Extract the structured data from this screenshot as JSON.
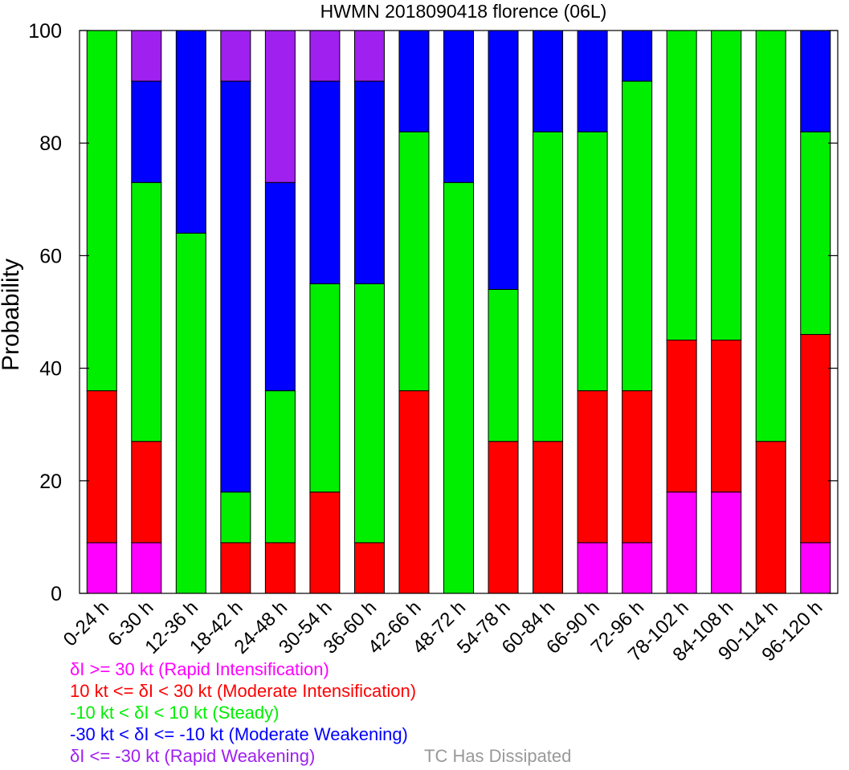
{
  "chart_data": {
    "type": "bar",
    "stacked": true,
    "title": "HWMN 2018090418 florence (06L)",
    "ylabel": "Probability",
    "ylim": [
      0,
      100
    ],
    "yticks": [
      0,
      20,
      40,
      60,
      80,
      100
    ],
    "categories": [
      "0-24 h",
      "6-30 h",
      "12-36 h",
      "18-42 h",
      "24-48 h",
      "30-54 h",
      "36-60 h",
      "42-66 h",
      "48-72 h",
      "54-78 h",
      "60-84 h",
      "66-90 h",
      "72-96 h",
      "78-102 h",
      "84-108 h",
      "90-114 h",
      "96-120 h"
    ],
    "series": [
      {
        "name": "δI >= 30 kt (Rapid Intensification)",
        "color": "#ff00ff",
        "values": [
          9,
          9,
          0,
          0,
          0,
          0,
          0,
          0,
          0,
          0,
          0,
          9,
          9,
          18,
          18,
          0,
          9
        ]
      },
      {
        "name": "10 kt <= δI < 30 kt (Moderate Intensification)",
        "color": "#ff0000",
        "values": [
          27,
          18,
          0,
          9,
          9,
          18,
          9,
          36,
          0,
          27,
          27,
          27,
          27,
          27,
          27,
          27,
          37
        ]
      },
      {
        "name": "-10 kt < δI < 10 kt (Steady)",
        "color": "#00ee00",
        "values": [
          64,
          46,
          64,
          9,
          27,
          37,
          46,
          46,
          73,
          27,
          55,
          46,
          55,
          55,
          55,
          73,
          36
        ]
      },
      {
        "name": "-30 kt < δI <= -10 kt (Moderate Weakening)",
        "color": "#0000ff",
        "values": [
          0,
          18,
          36,
          73,
          37,
          36,
          36,
          18,
          27,
          46,
          18,
          18,
          9,
          0,
          0,
          0,
          18
        ]
      },
      {
        "name": "δI <= -30 kt (Rapid Weakening)",
        "color": "#a020f0",
        "values": [
          0,
          9,
          0,
          9,
          27,
          9,
          9,
          0,
          0,
          0,
          0,
          0,
          0,
          0,
          0,
          0,
          0
        ]
      }
    ],
    "extra_legend": {
      "label": "TC Has Dissipated",
      "color": "#999999"
    }
  }
}
